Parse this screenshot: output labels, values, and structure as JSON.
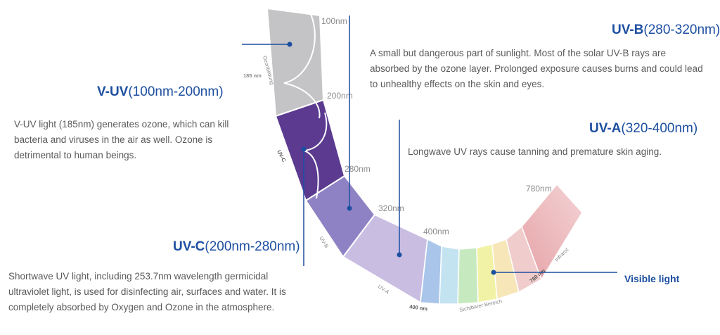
{
  "scale": {
    "ticks": [
      "100nm",
      "200nm",
      "280nm",
      "320nm",
      "400nm",
      "780nm"
    ],
    "arc_labels": {
      "ozone": "Ozonbildung",
      "ozone_185": "185 nm",
      "uvc": "UV-C",
      "uvb": "UV-B",
      "uva": "UV-A",
      "nm400": "400 nm",
      "visible": "Sichtbarer Bereich",
      "nm780": "780 nm",
      "infrared": "Infrarot"
    }
  },
  "sections": {
    "vuv": {
      "name": "V-UV",
      "range": "(100nm-200nm)",
      "text": "V-UV light (185nm) generates ozone, which can kill bacteria and viruses in the air as well. Ozone is detrimental to human beings."
    },
    "uvc": {
      "name": "UV-C",
      "range": "(200nm-280nm)",
      "text": "Shortwave UV light, including 253.7nm wavelength germicidal ultraviolet light, is used for disinfecting air, surfaces and water. It is completely absorbed by Oxygen and Ozone in the atmosphere."
    },
    "uvb": {
      "name": "UV-B",
      "range": "(280-320nm)",
      "text": "A small but dangerous part of sunlight. Most of the solar UV-B rays are absorbed by the ozone layer. Prolonged exposure causes burns and could lead to unhealthy effects on the skin and eyes."
    },
    "uva": {
      "name": "UV-A",
      "range": "(320-400nm)",
      "text": "Longwave UV rays cause tanning and premature skin aging."
    },
    "visible": {
      "name": "Visible light"
    }
  },
  "colors": {
    "vuv": "#c4c4c6",
    "uvc": "#5b3a90",
    "uvb": "#8f82c4",
    "uva": "#c9bde2",
    "accent": "#1d4fa0",
    "visible": [
      "#a9c6ea",
      "#c4e3f1",
      "#c7e9c0",
      "#f2f2a6",
      "#f7e7b8",
      "#f1cccc"
    ],
    "infrared": "#e6a3a7"
  }
}
